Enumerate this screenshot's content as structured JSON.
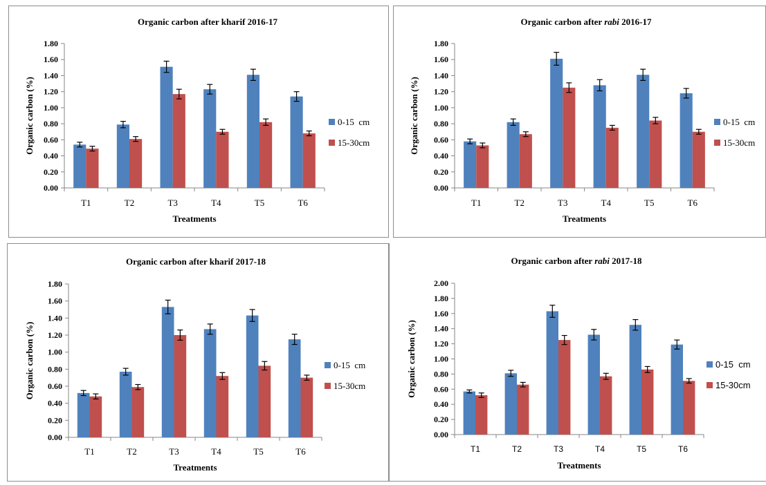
{
  "colors": {
    "series_a": "#4f81bd",
    "series_b": "#c0504d",
    "axis": "#868686",
    "error_bar": "#000000"
  },
  "chart_data": [
    {
      "type": "bar",
      "title": "Organic carbon after kharif 2016-17",
      "xlabel": "Treatments",
      "ylabel": "Organic carbon  (%)",
      "categories": [
        "T1",
        "T2",
        "T3",
        "T4",
        "T5",
        "T6"
      ],
      "y_ticks": [
        "0.00",
        "0.20",
        "0.40",
        "0.60",
        "0.80",
        "1.00",
        "1.20",
        "1.40",
        "1.60",
        "1.80"
      ],
      "ylim": [
        0,
        1.8
      ],
      "legend_position": "right",
      "series": [
        {
          "name": "0-15  cm",
          "values": [
            0.54,
            0.79,
            1.51,
            1.23,
            1.41,
            1.14
          ],
          "errors": [
            0.03,
            0.04,
            0.07,
            0.06,
            0.07,
            0.06
          ]
        },
        {
          "name": "15-30cm",
          "values": [
            0.49,
            0.61,
            1.17,
            0.7,
            0.82,
            0.68
          ],
          "errors": [
            0.03,
            0.03,
            0.06,
            0.03,
            0.04,
            0.03
          ]
        }
      ]
    },
    {
      "type": "bar",
      "title": "Organic carbon after rabi 2016-17",
      "title_parts": [
        {
          "text": "Organic carbon after ",
          "italic": false
        },
        {
          "text": "rabi",
          "italic": true
        },
        {
          "text": " 2016-17",
          "italic": false
        }
      ],
      "xlabel": "Treatments",
      "ylabel": "Organic carbon (%)",
      "categories": [
        "T1",
        "T2",
        "T3",
        "T4",
        "T5",
        "T6"
      ],
      "y_ticks": [
        "0.00",
        "0.20",
        "0.40",
        "0.60",
        "0.80",
        "1.00",
        "1.20",
        "1.40",
        "1.60",
        "1.80"
      ],
      "ylim": [
        0,
        1.8
      ],
      "legend_position": "right",
      "series": [
        {
          "name": "0-15  cm",
          "values": [
            0.58,
            0.82,
            1.61,
            1.28,
            1.41,
            1.18
          ],
          "errors": [
            0.03,
            0.04,
            0.08,
            0.07,
            0.07,
            0.06
          ]
        },
        {
          "name": "15-30cm",
          "values": [
            0.53,
            0.67,
            1.25,
            0.75,
            0.84,
            0.7
          ],
          "errors": [
            0.03,
            0.03,
            0.06,
            0.03,
            0.04,
            0.03
          ]
        }
      ]
    },
    {
      "type": "bar",
      "title": "Organic carbon after kharif 2017-18",
      "xlabel": "Treatments",
      "ylabel": "Organic carbon (%)",
      "categories": [
        "T1",
        "T2",
        "T3",
        "T4",
        "T5",
        "T6"
      ],
      "y_ticks": [
        "0.00",
        "0.20",
        "0.40",
        "0.60",
        "0.80",
        "1.00",
        "1.20",
        "1.40",
        "1.60",
        "1.80"
      ],
      "ylim": [
        0,
        1.8
      ],
      "legend_position": "right",
      "series": [
        {
          "name": "0-15  cm",
          "values": [
            0.52,
            0.77,
            1.53,
            1.27,
            1.43,
            1.15
          ],
          "errors": [
            0.03,
            0.04,
            0.08,
            0.06,
            0.07,
            0.06
          ]
        },
        {
          "name": "15-30cm",
          "values": [
            0.48,
            0.59,
            1.2,
            0.72,
            0.84,
            0.7
          ],
          "errors": [
            0.03,
            0.03,
            0.06,
            0.04,
            0.05,
            0.03
          ]
        }
      ]
    },
    {
      "type": "bar",
      "title": "Organic carbon after rabi 2017-18",
      "title_parts": [
        {
          "text": "Organic carbon after ",
          "italic": false
        },
        {
          "text": "rabi",
          "italic": true
        },
        {
          "text": " 2017-18",
          "italic": false
        }
      ],
      "xlabel": "Treatments",
      "ylabel": "Organic carbon (%)",
      "categories": [
        "T1",
        "T2",
        "T3",
        "T4",
        "T5",
        "T6"
      ],
      "y_ticks": [
        "0.00",
        "0.20",
        "0.40",
        "0.60",
        "0.80",
        "1.00",
        "1.20",
        "1.40",
        "1.60",
        "1.80",
        "2.00"
      ],
      "ylim": [
        0,
        2.0
      ],
      "legend_position": "right",
      "series": [
        {
          "name": "0-15  cm",
          "values": [
            0.57,
            0.81,
            1.63,
            1.32,
            1.45,
            1.19
          ],
          "errors": [
            0.02,
            0.04,
            0.08,
            0.07,
            0.07,
            0.06
          ]
        },
        {
          "name": "15-30cm",
          "values": [
            0.52,
            0.66,
            1.25,
            0.77,
            0.86,
            0.71
          ],
          "errors": [
            0.03,
            0.03,
            0.06,
            0.04,
            0.04,
            0.03
          ]
        }
      ]
    }
  ]
}
